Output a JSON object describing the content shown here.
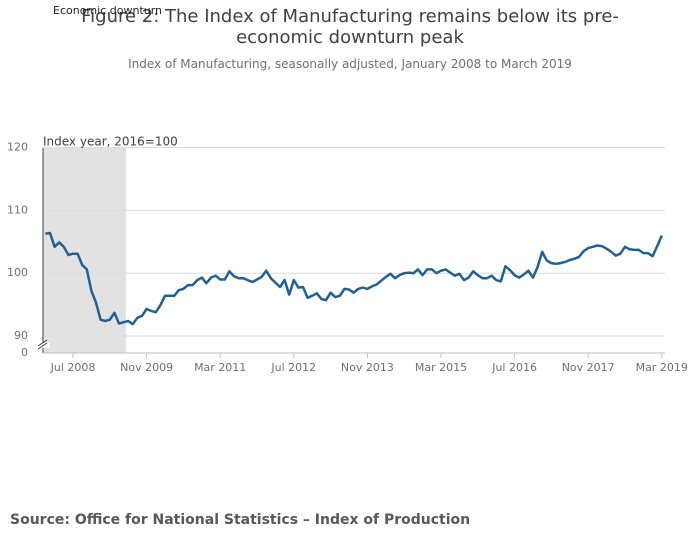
{
  "chart_data": {
    "type": "line",
    "title": "Figure 2: The Index of Manufacturing remains below its pre-economic downturn peak",
    "subtitle": "Index of Manufacturing, seasonally adjusted, January 2008 to March 2019",
    "y_axis_label": "Index year, 2016=100",
    "shade": {
      "label": "Economic downturn",
      "start": 0,
      "end": 17
    },
    "source": "Source: Office for National Statistics – Index of Production",
    "categories": [
      null,
      null,
      null,
      null,
      null,
      null,
      "Jul 2008",
      null,
      null,
      null,
      null,
      null,
      null,
      null,
      null,
      null,
      null,
      null,
      null,
      null,
      null,
      null,
      "Nov 2009",
      null,
      null,
      null,
      null,
      null,
      null,
      null,
      null,
      null,
      null,
      null,
      null,
      null,
      null,
      null,
      "Mar 2011",
      null,
      null,
      null,
      null,
      null,
      null,
      null,
      null,
      null,
      null,
      null,
      null,
      null,
      null,
      null,
      "Jul 2012",
      null,
      null,
      null,
      null,
      null,
      null,
      null,
      null,
      null,
      null,
      null,
      null,
      null,
      null,
      null,
      "Nov 2013",
      null,
      null,
      null,
      null,
      null,
      null,
      null,
      null,
      null,
      null,
      null,
      null,
      null,
      null,
      null,
      "Mar 2015",
      null,
      null,
      null,
      null,
      null,
      null,
      null,
      null,
      null,
      null,
      null,
      null,
      null,
      null,
      null,
      "Jul 2016",
      null,
      null,
      null,
      null,
      null,
      null,
      null,
      null,
      null,
      null,
      null,
      null,
      null,
      null,
      null,
      "Nov 2017",
      null,
      null,
      null,
      null,
      null,
      null,
      null,
      null,
      null,
      null,
      null,
      null,
      null,
      null,
      null,
      "Mar 2019"
    ],
    "values": [
      106.3,
      106.4,
      104.2,
      104.9,
      104.2,
      102.9,
      103.1,
      103.1,
      101.3,
      100.6,
      97.2,
      95.3,
      92.6,
      92.4,
      92.6,
      93.7,
      92.0,
      92.2,
      92.4,
      91.9,
      92.9,
      93.2,
      94.3,
      94.0,
      93.8,
      94.9,
      96.4,
      96.4,
      96.4,
      97.3,
      97.5,
      98.1,
      98.1,
      98.9,
      99.3,
      98.4,
      99.3,
      99.6,
      99.0,
      99.0,
      100.3,
      99.5,
      99.2,
      99.2,
      98.9,
      98.6,
      99.0,
      99.4,
      100.4,
      99.2,
      98.5,
      97.8,
      98.9,
      96.6,
      98.9,
      97.7,
      97.8,
      96.1,
      96.4,
      96.8,
      95.9,
      95.7,
      96.9,
      96.2,
      96.4,
      97.5,
      97.4,
      96.9,
      97.5,
      97.7,
      97.5,
      97.9,
      98.2,
      98.8,
      99.4,
      99.9,
      99.2,
      99.7,
      100.0,
      100.1,
      100.0,
      100.6,
      99.7,
      100.6,
      100.6,
      100.0,
      100.4,
      100.6,
      100.1,
      99.6,
      99.9,
      98.9,
      99.3,
      100.3,
      99.7,
      99.2,
      99.2,
      99.6,
      98.9,
      98.7,
      101.1,
      100.5,
      99.7,
      99.3,
      99.8,
      100.4,
      99.3,
      101.0,
      103.4,
      102.0,
      101.6,
      101.5,
      101.6,
      101.8,
      102.1,
      102.3,
      102.6,
      103.5,
      104.0,
      104.2,
      104.4,
      104.3,
      103.9,
      103.4,
      102.8,
      103.1,
      104.2,
      103.8,
      103.7,
      103.7,
      103.2,
      103.2,
      102.7,
      104.3,
      106.0
    ],
    "color": "#206095",
    "ylim": [
      87.3,
      120.4
    ],
    "yticks": [
      90,
      100,
      110,
      120
    ],
    "ybreak_label": 0,
    "grid": true
  }
}
